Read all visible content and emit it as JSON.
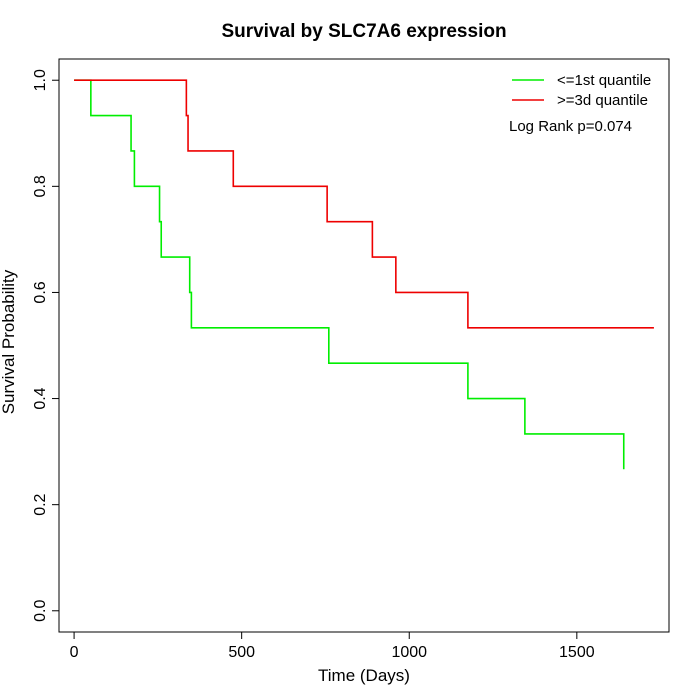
{
  "chart_data": {
    "type": "line",
    "title": "Survival by SLC7A6 expression",
    "xlabel": "Time (Days)",
    "ylabel": "Survival Probability",
    "xlim": [
      -45,
      1775
    ],
    "ylim": [
      -0.04,
      1.04
    ],
    "xticks": [
      0,
      500,
      1000,
      1500
    ],
    "yticks": [
      0.0,
      0.2,
      0.4,
      0.6,
      0.8,
      1.0
    ],
    "xtick_labels": [
      "0",
      "500",
      "1000",
      "1500"
    ],
    "ytick_labels": [
      "0.0",
      "0.2",
      "0.4",
      "0.6",
      "0.8",
      "1.0"
    ],
    "grid": false,
    "legend_position": "top-right",
    "annotation": "Log Rank p=0.074",
    "series": [
      {
        "name": "<=1st quantile",
        "color": "#00ee00",
        "step": true,
        "x": [
          0,
          50,
          170,
          180,
          255,
          260,
          345,
          350,
          760,
          1175,
          1345,
          1640
        ],
        "y": [
          1.0,
          0.9333,
          0.8667,
          0.8,
          0.7333,
          0.6667,
          0.6,
          0.5333,
          0.4667,
          0.4,
          0.3333,
          0.2667
        ]
      },
      {
        "name": ">=3d quantile",
        "color": "#ee0000",
        "step": true,
        "x": [
          0,
          335,
          340,
          475,
          755,
          890,
          960,
          1175,
          1730
        ],
        "y": [
          1.0,
          0.9333,
          0.8667,
          0.8,
          0.7333,
          0.6667,
          0.6,
          0.5333,
          0.5333
        ]
      }
    ]
  }
}
